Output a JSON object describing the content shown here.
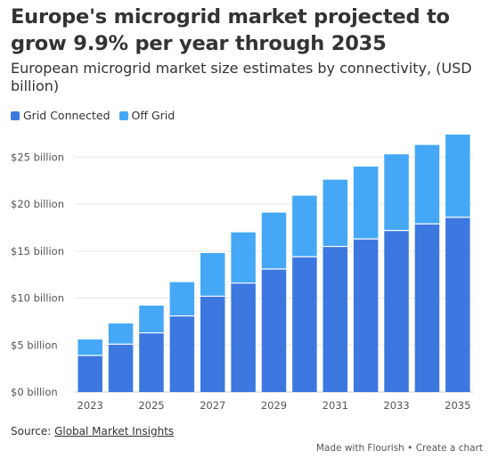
{
  "header": {
    "title": "Europe's microgrid market projected to grow 9.9% per year through 2035",
    "subtitle": "European microgrid market size estimates by connectivity, (USD billion)"
  },
  "footer": {
    "source_prefix": "Source: ",
    "source_link": "Global Market Insights",
    "credit": "Made with Flourish • Create a chart"
  },
  "colors": {
    "grid_connected": "#3d78e0",
    "off_grid": "#45a8f7"
  },
  "chart_data": {
    "type": "bar",
    "stacked": true,
    "categories": [
      "2023",
      "2024",
      "2025",
      "2026",
      "2027",
      "2028",
      "2029",
      "2030",
      "2031",
      "2032",
      "2033",
      "2034",
      "2035"
    ],
    "series": [
      {
        "name": "Grid Connected",
        "values": [
          3.9,
          5.1,
          6.3,
          8.1,
          10.2,
          11.6,
          13.1,
          14.4,
          15.5,
          16.3,
          17.2,
          17.9,
          18.6
        ]
      },
      {
        "name": "Off Grid",
        "values": [
          1.7,
          2.2,
          2.9,
          3.6,
          4.6,
          5.4,
          6.0,
          6.5,
          7.1,
          7.7,
          8.1,
          8.4,
          8.8
        ]
      }
    ],
    "ylim": [
      0,
      27.5
    ],
    "yticks": [
      0,
      5,
      10,
      15,
      20,
      25
    ],
    "ytick_labels": [
      "$0 billion",
      "$5 billion",
      "$10 billion",
      "$15 billion",
      "$20 billion",
      "$25 billion"
    ],
    "xtick_labels": [
      "2023",
      "2025",
      "2027",
      "2029",
      "2031",
      "2033",
      "2035"
    ],
    "xlabel": "",
    "ylabel": "",
    "legend_position": "top-left",
    "grid": true
  }
}
